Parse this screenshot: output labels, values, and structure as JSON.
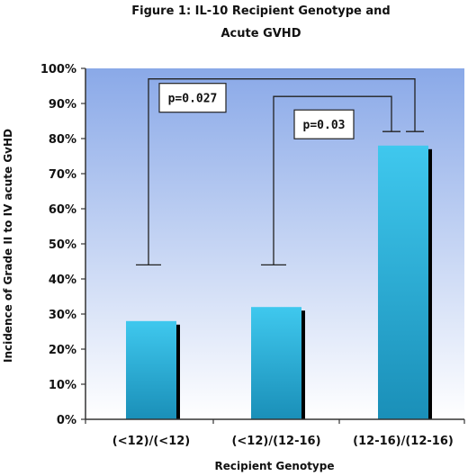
{
  "chart_data": {
    "type": "bar",
    "title_lines": [
      "Figure 1: IL-10 Recipient Genotype and",
      "Acute GVHD"
    ],
    "xlabel": "Recipient Genotype",
    "ylabel": "Incidence of Grade II to IV acute GvHD",
    "categories": [
      "(<12)/(<12)",
      "(<12)/(12-16)",
      "(12-16)/(12-16)"
    ],
    "values": [
      28,
      32,
      78
    ],
    "ylim": [
      0,
      100
    ],
    "yticks": [
      0,
      10,
      20,
      30,
      40,
      50,
      60,
      70,
      80,
      90,
      100
    ],
    "ytick_labels": [
      "0%",
      "10%",
      "20%",
      "30%",
      "40%",
      "50%",
      "60%",
      "70%",
      "80%",
      "90%",
      "100%"
    ],
    "grid": false,
    "annotations": [
      {
        "text": "p=0.027",
        "from_category": 0,
        "to_category": 2,
        "bracket_top": 97,
        "from_bottom": 44,
        "to_bottom": 82
      },
      {
        "text": "p=0.03",
        "from_category": 1,
        "to_category": 2,
        "bracket_top": 92,
        "from_bottom": 44,
        "to_bottom": 82
      }
    ],
    "colors": {
      "bar_light": "#3fc8ee",
      "bar_dark": "#1a8fb8",
      "bar_shadow": "#000000",
      "plot_top": "#8aa9e8",
      "plot_bottom": "#ffffff"
    }
  }
}
